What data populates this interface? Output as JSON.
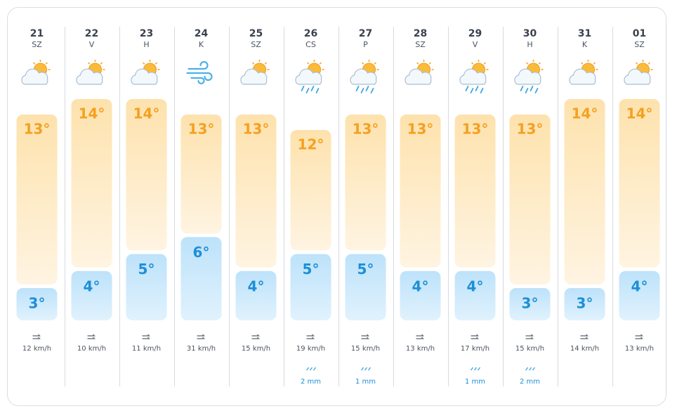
{
  "days": [
    {
      "date": "21",
      "weekday": "SZ",
      "icon": "partly-cloudy",
      "high": 13,
      "high_label": "13°",
      "low": 3,
      "low_label": "3°",
      "wind": "12 km/h"
    },
    {
      "date": "22",
      "weekday": "V",
      "icon": "partly-cloudy",
      "high": 14,
      "high_label": "14°",
      "low": 4,
      "low_label": "4°",
      "wind": "10 km/h"
    },
    {
      "date": "23",
      "weekday": "H",
      "icon": "partly-cloudy",
      "high": 14,
      "high_label": "14°",
      "low": 5,
      "low_label": "5°",
      "wind": "11 km/h"
    },
    {
      "date": "24",
      "weekday": "K",
      "icon": "wind",
      "high": 13,
      "high_label": "13°",
      "low": 6,
      "low_label": "6°",
      "wind": "31 km/h"
    },
    {
      "date": "25",
      "weekday": "SZ",
      "icon": "partly-cloudy",
      "high": 13,
      "high_label": "13°",
      "low": 4,
      "low_label": "4°",
      "wind": "15 km/h"
    },
    {
      "date": "26",
      "weekday": "CS",
      "icon": "rain",
      "high": 12,
      "high_label": "12°",
      "low": 5,
      "low_label": "5°",
      "wind": "19 km/h",
      "rain": "2 mm"
    },
    {
      "date": "27",
      "weekday": "P",
      "icon": "rain",
      "high": 13,
      "high_label": "13°",
      "low": 5,
      "low_label": "5°",
      "wind": "15 km/h",
      "rain": "1 mm"
    },
    {
      "date": "28",
      "weekday": "SZ",
      "icon": "partly-cloudy",
      "high": 13,
      "high_label": "13°",
      "low": 4,
      "low_label": "4°",
      "wind": "13 km/h"
    },
    {
      "date": "29",
      "weekday": "V",
      "icon": "rain",
      "high": 13,
      "high_label": "13°",
      "low": 4,
      "low_label": "4°",
      "wind": "17 km/h",
      "rain": "1 mm"
    },
    {
      "date": "30",
      "weekday": "H",
      "icon": "rain",
      "high": 13,
      "high_label": "13°",
      "low": 3,
      "low_label": "3°",
      "wind": "15 km/h",
      "rain": "2 mm"
    },
    {
      "date": "31",
      "weekday": "K",
      "icon": "partly-cloudy",
      "high": 14,
      "high_label": "14°",
      "low": 3,
      "low_label": "3°",
      "wind": "14 km/h"
    },
    {
      "date": "01",
      "weekday": "SZ",
      "icon": "partly-cloudy",
      "high": 14,
      "high_label": "14°",
      "low": 4,
      "low_label": "4°",
      "wind": "13 km/h"
    }
  ]
}
